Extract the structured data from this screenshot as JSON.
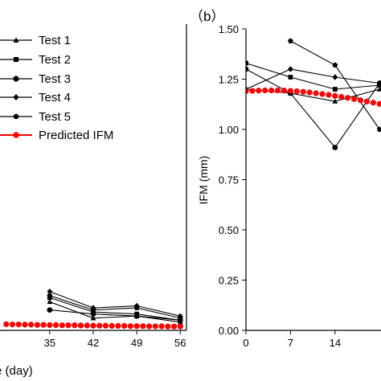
{
  "chart_data": [
    {
      "panel_label": "",
      "type": "line",
      "xlabel": "e (day)",
      "ylabel": "",
      "x_ticks": [
        35,
        42,
        49,
        56
      ],
      "x_range": [
        27,
        57
      ],
      "y_range": [
        0.0,
        1.5
      ],
      "legend": {
        "position": "top",
        "entries": [
          {
            "name": "Test 1",
            "marker": "triangle"
          },
          {
            "name": "Test 2",
            "marker": "square"
          },
          {
            "name": "Test 3",
            "marker": "circle"
          },
          {
            "name": "Test 4",
            "marker": "diamond"
          },
          {
            "name": "Test 5",
            "marker": "pentagon"
          },
          {
            "name": "Predicted IFM",
            "marker": "circle",
            "color": "#ff0000"
          }
        ]
      },
      "series": [
        {
          "name": "Test 1",
          "x": [
            35,
            42,
            49,
            56
          ],
          "y": [
            0.14,
            0.06,
            0.07,
            0.04
          ]
        },
        {
          "name": "Test 2",
          "x": [
            35,
            42,
            49,
            56
          ],
          "y": [
            0.16,
            0.09,
            0.08,
            0.05
          ]
        },
        {
          "name": "Test 3",
          "x": [
            35,
            42,
            49,
            56
          ],
          "y": [
            0.1,
            0.08,
            0.07,
            0.05
          ]
        },
        {
          "name": "Test 4",
          "x": [
            35,
            42,
            49,
            56
          ],
          "y": [
            0.19,
            0.11,
            0.12,
            0.07
          ]
        },
        {
          "name": "Test 5",
          "x": [
            35,
            42,
            49,
            56
          ],
          "y": [
            0.17,
            0.1,
            0.11,
            0.06
          ]
        },
        {
          "name": "Predicted IFM",
          "color": "#ff0000",
          "dotted": true,
          "x": [
            28,
            29,
            30,
            31,
            32,
            33,
            34,
            35,
            36,
            37,
            38,
            39,
            40,
            41,
            42,
            43,
            44,
            45,
            46,
            47,
            48,
            49,
            50,
            51,
            52,
            53,
            54,
            55,
            56
          ],
          "y": [
            0.03,
            0.029,
            0.029,
            0.028,
            0.028,
            0.027,
            0.027,
            0.026,
            0.026,
            0.025,
            0.025,
            0.025,
            0.024,
            0.024,
            0.023,
            0.023,
            0.023,
            0.022,
            0.022,
            0.022,
            0.021,
            0.021,
            0.021,
            0.02,
            0.02,
            0.02,
            0.019,
            0.019,
            0.019
          ]
        }
      ]
    },
    {
      "panel_label": "（b）",
      "type": "line",
      "xlabel": "",
      "ylabel": "IFM (mm)",
      "x_ticks": [
        0,
        7,
        14
      ],
      "x_range": [
        0,
        24
      ],
      "y_ticks": [
        "0.00",
        "0.25",
        "0.50",
        "0.75",
        "1.00",
        "1.25",
        "1.50"
      ],
      "y_range": [
        0.0,
        1.5
      ],
      "series": [
        {
          "name": "Test 1",
          "x": [
            0,
            7,
            14,
            21
          ],
          "y": [
            1.2,
            1.18,
            1.14,
            1.2
          ]
        },
        {
          "name": "Test 2",
          "x": [
            0,
            7,
            14,
            21
          ],
          "y": [
            1.33,
            1.26,
            1.2,
            1.22
          ]
        },
        {
          "name": "Test 3",
          "x": [
            0,
            7,
            14,
            21
          ],
          "y": [
            1.3,
            1.18,
            0.91,
            1.23
          ]
        },
        {
          "name": "Test 4",
          "x": [
            0,
            7,
            14,
            21
          ],
          "y": [
            1.2,
            1.3,
            1.26,
            1.23
          ]
        },
        {
          "name": "Test 5",
          "x": [
            7,
            14,
            21
          ],
          "y": [
            1.44,
            1.32,
            1.0
          ]
        },
        {
          "name": "Predicted IFM",
          "color": "#ff0000",
          "dotted": true,
          "x": [
            0,
            1,
            2,
            3,
            4,
            5,
            6,
            7,
            8,
            9,
            10,
            11,
            12,
            13,
            14,
            15,
            16,
            17,
            18,
            19,
            20,
            21,
            22,
            23,
            24
          ],
          "y": [
            1.19,
            1.192,
            1.193,
            1.194,
            1.194,
            1.194,
            1.193,
            1.192,
            1.19,
            1.187,
            1.184,
            1.18,
            1.176,
            1.172,
            1.167,
            1.162,
            1.157,
            1.151,
            1.145,
            1.139,
            1.133,
            1.127,
            1.121,
            1.115,
            1.109
          ]
        }
      ]
    }
  ]
}
